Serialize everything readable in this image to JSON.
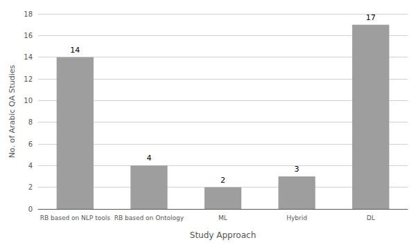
{
  "chart_data": {
    "type": "bar",
    "xlabel": "Study Approach",
    "ylabel": "No. of Arabic QA Studies",
    "categories": [
      "RB based on NLP tools",
      "RB based on Ontology",
      "ML",
      "Hybrid",
      "DL"
    ],
    "values": [
      14,
      4,
      2,
      3,
      17
    ],
    "color": "#9e9e9e",
    "ylim": [
      0,
      18
    ],
    "yticks": [
      0,
      2,
      4,
      6,
      8,
      10,
      12,
      14,
      16,
      18
    ],
    "grid": true,
    "data_labels": true
  }
}
